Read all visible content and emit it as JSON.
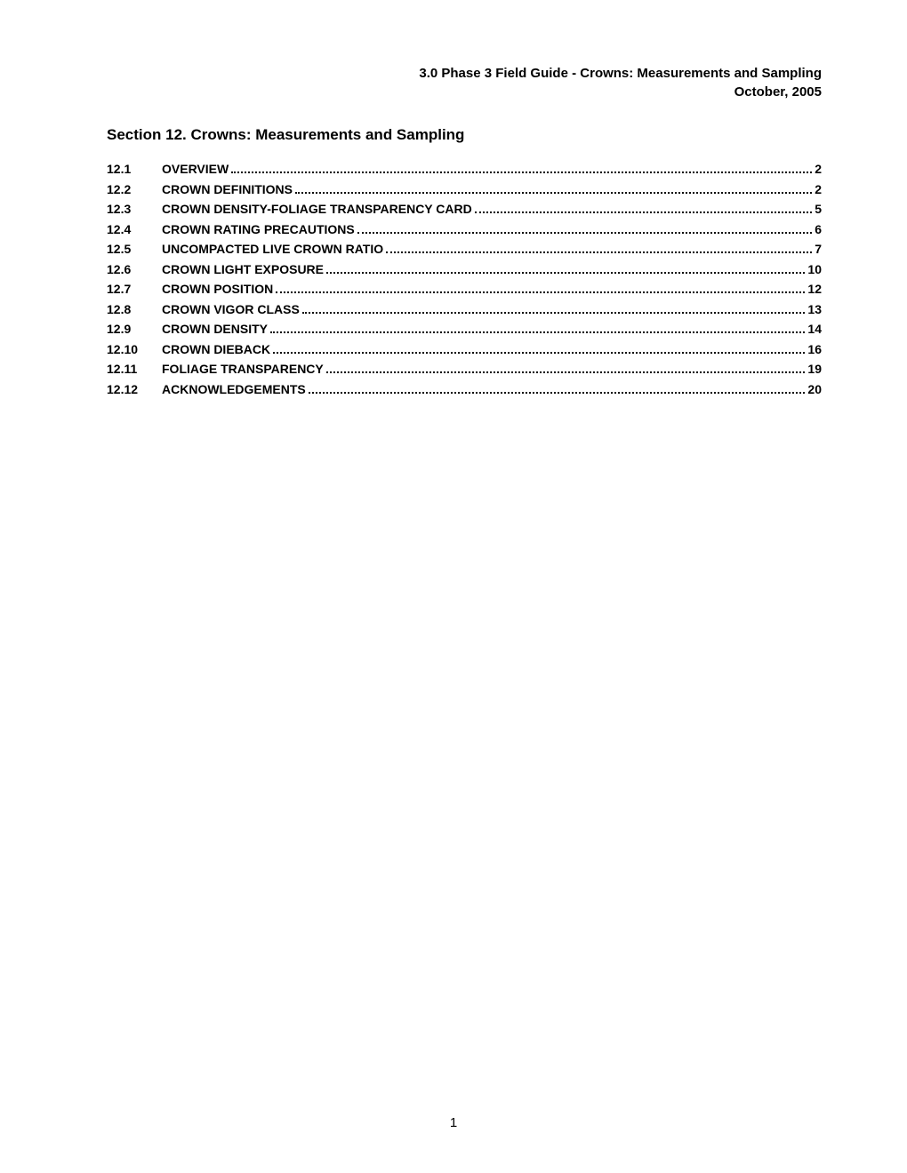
{
  "header": {
    "line1": "3.0 Phase 3 Field Guide  - Crowns: Measurements and Sampling",
    "line2": "October, 2005"
  },
  "section_title": "Section 12.  Crowns: Measurements and Sampling",
  "toc": [
    {
      "num": "12.1",
      "title": "OVERVIEW",
      "page": "2"
    },
    {
      "num": "12.2",
      "title": "CROWN DEFINITIONS",
      "page": "2"
    },
    {
      "num": "12.3",
      "title": "CROWN DENSITY-FOLIAGE TRANSPARENCY CARD",
      "page": "5"
    },
    {
      "num": "12.4",
      "title": "CROWN RATING PRECAUTIONS",
      "page": "6"
    },
    {
      "num": "12.5",
      "title": "UNCOMPACTED LIVE CROWN RATIO",
      "page": "7"
    },
    {
      "num": "12.6",
      "title": "CROWN LIGHT EXPOSURE",
      "page": "10"
    },
    {
      "num": "12.7",
      "title": "CROWN POSITION",
      "page": "12"
    },
    {
      "num": "12.8",
      "title": "CROWN VIGOR CLASS",
      "page": "13"
    },
    {
      "num": "12.9",
      "title": "CROWN DENSITY",
      "page": "14"
    },
    {
      "num": "12.10",
      "title": "CROWN DIEBACK",
      "page": "16"
    },
    {
      "num": "12.11",
      "title": "FOLIAGE TRANSPARENCY",
      "page": "19"
    },
    {
      "num": "12.12",
      "title": "ACKNOWLEDGEMENTS",
      "page": "20"
    }
  ],
  "page_number": "1"
}
